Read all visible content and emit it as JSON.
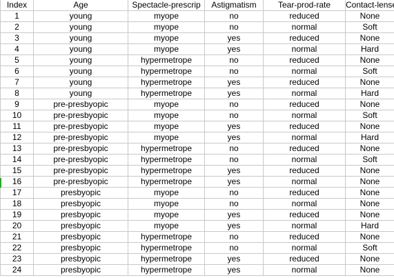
{
  "table": {
    "columns": [
      "Index",
      "Age",
      "Spectacle-prescrip",
      "Astigmatism",
      "Tear-prod-rate",
      "Contact-lenses"
    ],
    "rows": [
      [
        "1",
        "young",
        "myope",
        "no",
        "reduced",
        "None"
      ],
      [
        "2",
        "young",
        "myope",
        "no",
        "normal",
        "Soft"
      ],
      [
        "3",
        "young",
        "myope",
        "yes",
        "reduced",
        "None"
      ],
      [
        "4",
        "young",
        "myope",
        "yes",
        "normal",
        "Hard"
      ],
      [
        "5",
        "young",
        "hypermetrope",
        "no",
        "reduced",
        "None"
      ],
      [
        "6",
        "young",
        "hypermetrope",
        "no",
        "normal",
        "Soft"
      ],
      [
        "7",
        "young",
        "hypermetrope",
        "yes",
        "reduced",
        "None"
      ],
      [
        "8",
        "young",
        "hypermetrope",
        "yes",
        "normal",
        "Hard"
      ],
      [
        "9",
        "pre-presbyopic",
        "myope",
        "no",
        "reduced",
        "None"
      ],
      [
        "10",
        "pre-presbyopic",
        "myope",
        "no",
        "normal",
        "Soft"
      ],
      [
        "11",
        "pre-presbyopic",
        "myope",
        "yes",
        "reduced",
        "None"
      ],
      [
        "12",
        "pre-presbyopic",
        "myope",
        "yes",
        "normal",
        "Hard"
      ],
      [
        "13",
        "pre-presbyopic",
        "hypermetrope",
        "no",
        "reduced",
        "None"
      ],
      [
        "14",
        "pre-presbyopic",
        "hypermetrope",
        "no",
        "normal",
        "Soft"
      ],
      [
        "15",
        "pre-presbyopic",
        "hypermetrope",
        "yes",
        "reduced",
        "None"
      ],
      [
        "16",
        "pre-presbyopic",
        "hypermetrope",
        "yes",
        "normal",
        "None"
      ],
      [
        "17",
        "presbyopic",
        "myope",
        "no",
        "reduced",
        "None"
      ],
      [
        "18",
        "presbyopic",
        "myope",
        "no",
        "normal",
        "None"
      ],
      [
        "19",
        "presbyopic",
        "myope",
        "yes",
        "reduced",
        "None"
      ],
      [
        "20",
        "presbyopic",
        "myope",
        "yes",
        "normal",
        "Hard"
      ],
      [
        "21",
        "presbyopic",
        "hypermetrope",
        "no",
        "reduced",
        "None"
      ],
      [
        "22",
        "presbyopic",
        "hypermetrope",
        "no",
        "normal",
        "Soft"
      ],
      [
        "23",
        "presbyopic",
        "hypermetrope",
        "yes",
        "reduced",
        "None"
      ],
      [
        "24",
        "presbyopic",
        "hypermetrope",
        "yes",
        "normal",
        "None"
      ]
    ]
  },
  "colors": {
    "grid": "#c8c8c8",
    "row_marker": "#2aa52a"
  }
}
